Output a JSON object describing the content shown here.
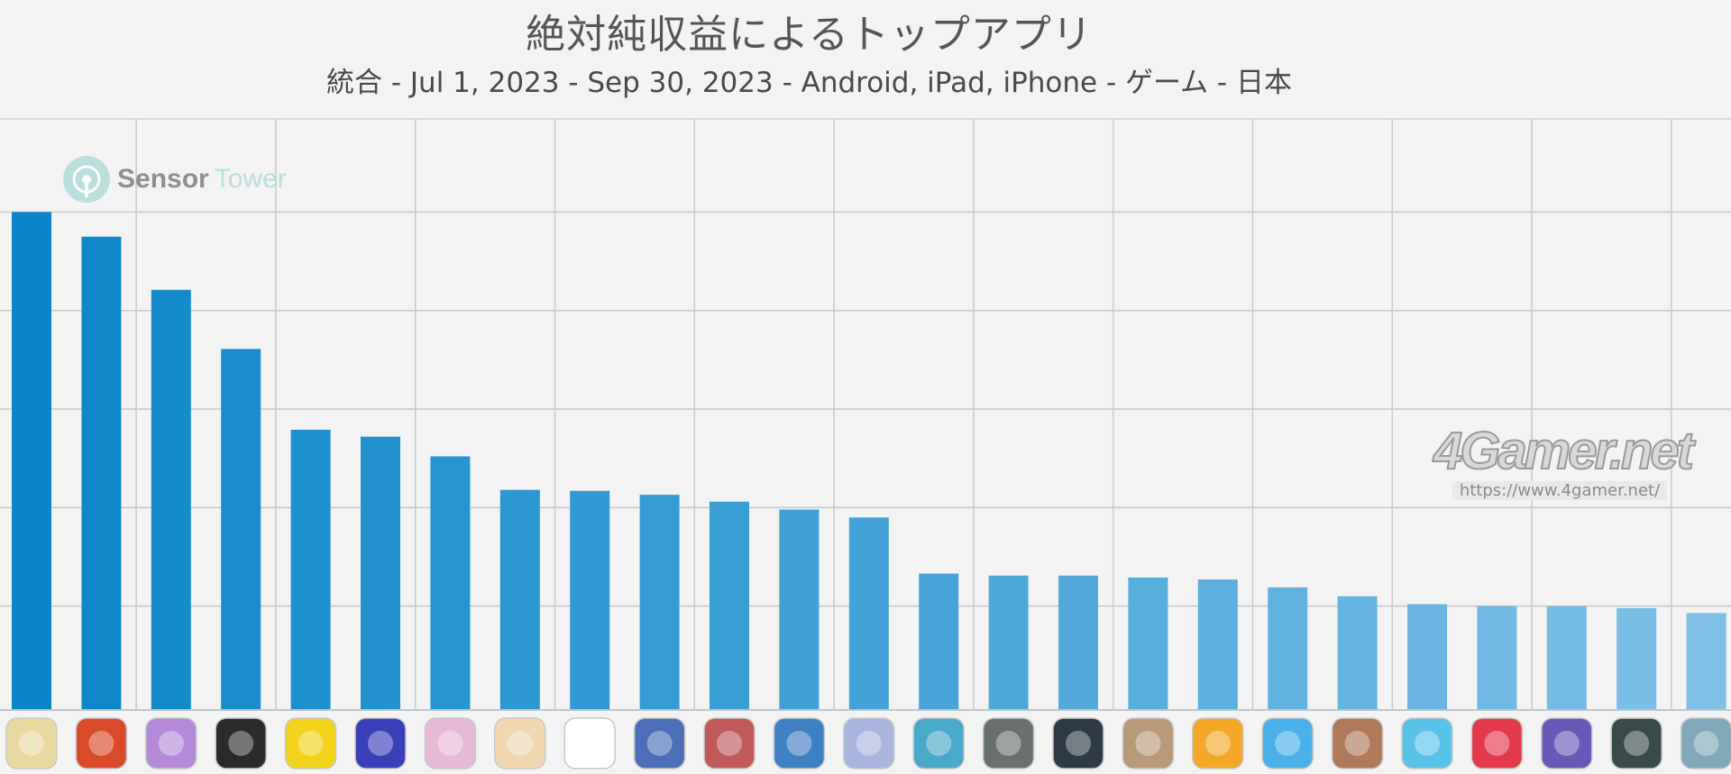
{
  "chart_data": {
    "type": "bar",
    "title": "絶対純収益によるトップアプリ",
    "subtitle": "統合 - Jul 1, 2023 - Sep 30, 2023 - Android, iPad, iPhone - ゲーム - 日本",
    "xlabel": "",
    "ylabel": "",
    "ylim": [
      0,
      6
    ],
    "grid": true,
    "values": [
      5.0,
      4.75,
      4.21,
      3.61,
      2.79,
      2.72,
      2.52,
      2.18,
      2.17,
      2.13,
      2.06,
      1.98,
      1.9,
      1.33,
      1.31,
      1.31,
      1.29,
      1.27,
      1.19,
      1.1,
      1.02,
      1.0,
      1.0,
      0.98,
      0.93
    ],
    "app_icons": [
      "fgo-icon",
      "monster-strike-icon",
      "uma-musume-icon",
      "pro-baseball-spirits-icon",
      "dragon-quest-walk-icon",
      "puzzle-and-dragons-icon",
      "honkai-star-rail-icon",
      "genshin-impact-icon",
      "pokemon-go-icon",
      "one-piece-bounty-rush-icon",
      "goddess-of-victory-nikke-icon",
      "dragon-ball-dokkan-icon",
      "blue-archive-icon",
      "project-sekai-icon",
      "efootball-icon",
      "efootball-champion-squad-icon",
      "knives-out-icon",
      "royal-match-icon",
      "yokai-watch-puni-puni-icon",
      "heaven-burns-red-icon",
      "disney-tsum-tsum-icon",
      "jewel-game-icon",
      "bleach-brave-souls-icon",
      "arknights-icon",
      "hero-game-icon"
    ]
  },
  "watermarks": {
    "sensor_tower_part1": "Sensor",
    "sensor_tower_part2": "Tower",
    "fourgamer_logo": "4Gamer.net",
    "fourgamer_url": "https://www.4gamer.net/"
  },
  "colors": {
    "bar_start": "#0a86c9",
    "bar_end": "#7ec0e6",
    "grid": "#c8c8c8",
    "background": "#f3f3f3"
  }
}
